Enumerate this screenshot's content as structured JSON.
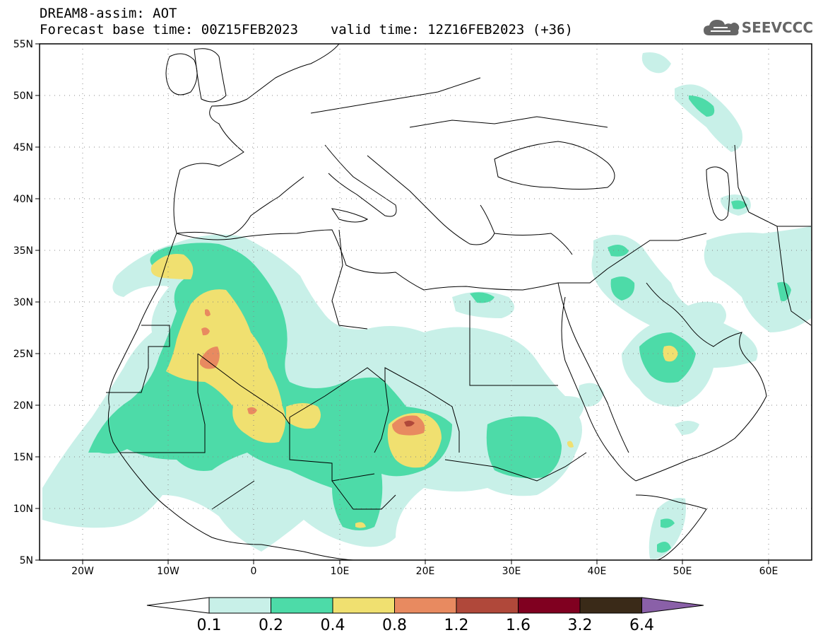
{
  "header": {
    "title": "DREAM8-assim: AOT",
    "base_time": "Forecast base time: 00Z15FEB2023",
    "valid_time": "valid time: 12Z16FEB2023 (+36)"
  },
  "logo": {
    "text": "SEEVCCC",
    "icon": "cloud-icon"
  },
  "map": {
    "extent": {
      "lon": [
        -25,
        65
      ],
      "lat": [
        5,
        55
      ]
    },
    "lat_ticks": [
      "55N",
      "50N",
      "45N",
      "40N",
      "35N",
      "30N",
      "25N",
      "20N",
      "15N",
      "10N",
      "5N"
    ],
    "lon_ticks": [
      "20W",
      "10W",
      "0",
      "10E",
      "20E",
      "30E",
      "40E",
      "50E",
      "60E"
    ],
    "grid": "dotted"
  },
  "colorbar": {
    "labels": [
      "0.1",
      "0.2",
      "0.4",
      "0.8",
      "1.2",
      "1.6",
      "3.2",
      "6.4"
    ],
    "colors": [
      "#ffffff",
      "#c8f0e8",
      "#4ddba8",
      "#f0e070",
      "#e88a60",
      "#b0483a",
      "#800020",
      "#3a2a18",
      "#8a60a8"
    ]
  }
}
